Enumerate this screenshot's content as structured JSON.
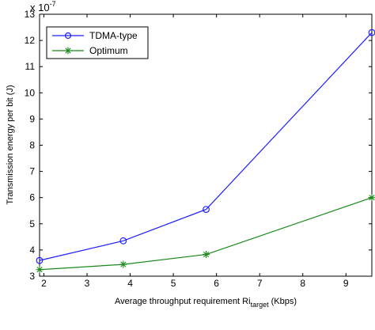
{
  "chart_data": {
    "type": "line",
    "title": "",
    "xlabel": "Average throughput requirement Ri",
    "xlabel_sub": "target",
    "xlabel_suffix": " (Kbps)",
    "ylabel": "Transmission energy per bit (J)",
    "y_exponent_base": "x 10",
    "y_exponent_power": "-7",
    "xlim": [
      1.9,
      9.6
    ],
    "ylim": [
      3,
      13
    ],
    "x_ticks": [
      2,
      3,
      4,
      5,
      6,
      7,
      8,
      9
    ],
    "y_ticks": [
      3,
      4,
      5,
      6,
      7,
      8,
      9,
      10,
      11,
      12,
      13
    ],
    "grid": false,
    "legend_position": "top-left",
    "series": [
      {
        "name": "TDMA-type",
        "color": "#1f1fff",
        "marker": "circle",
        "x": [
          1.9,
          3.84,
          5.76,
          9.6
        ],
        "y": [
          3.6,
          4.35,
          5.55,
          12.3
        ]
      },
      {
        "name": "Optimum",
        "color": "#1a8a1a",
        "marker": "star",
        "x": [
          1.9,
          3.84,
          5.76,
          9.6
        ],
        "y": [
          3.25,
          3.45,
          3.83,
          6.0
        ]
      }
    ]
  }
}
